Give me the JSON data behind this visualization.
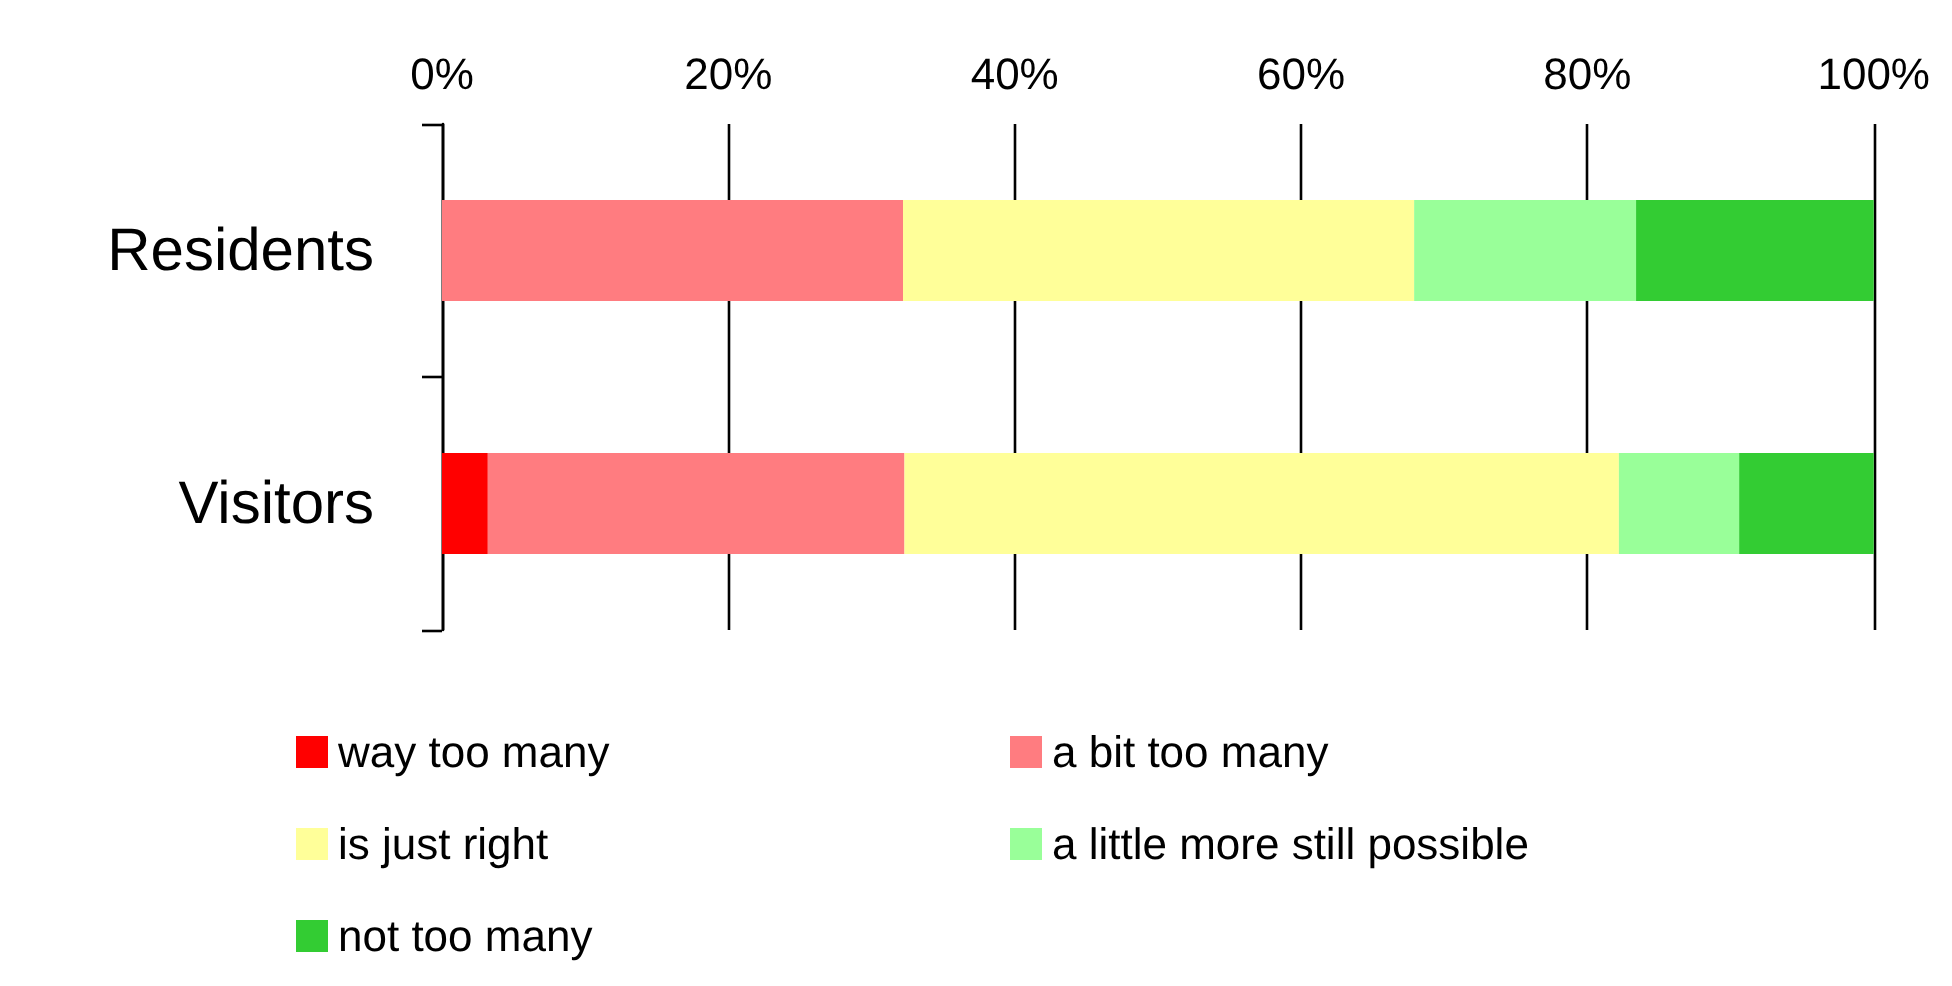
{
  "chart_data": {
    "type": "bar",
    "orientation": "horizontal",
    "stacked": true,
    "categories": [
      "Residents",
      "Visitors"
    ],
    "series": [
      {
        "name": "way too many",
        "color": "#ff0000",
        "values": [
          0,
          3.2
        ]
      },
      {
        "name": "a bit too many",
        "color": "#ff7c80",
        "values": [
          32.2,
          29.1
        ]
      },
      {
        "name": "is just right",
        "color": "#ffff99",
        "values": [
          35.7,
          49.9
        ]
      },
      {
        "name": "a little more still possible",
        "color": "#99ff99",
        "values": [
          15.5,
          8.4
        ]
      },
      {
        "name": "not too many",
        "color": "#33cc33",
        "values": [
          16.6,
          9.4
        ]
      }
    ],
    "xlim": [
      0,
      100
    ],
    "xticks": [
      {
        "value": 0,
        "label": "0%"
      },
      {
        "value": 20,
        "label": "20%"
      },
      {
        "value": 40,
        "label": "40%"
      },
      {
        "value": 60,
        "label": "60%"
      },
      {
        "value": 80,
        "label": "80%"
      },
      {
        "value": 100,
        "label": "100%"
      }
    ],
    "grid": "x",
    "legend": "bottom"
  }
}
